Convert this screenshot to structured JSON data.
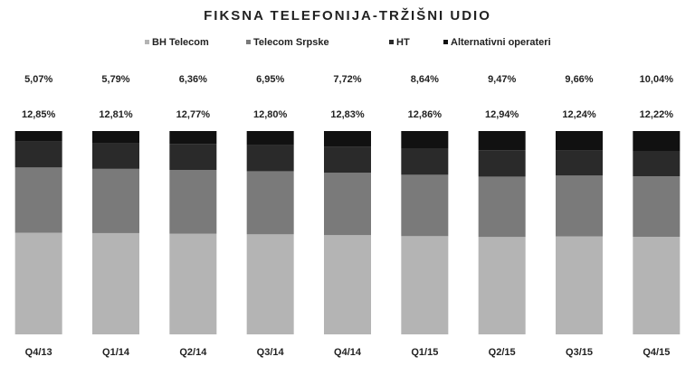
{
  "chart_data": {
    "type": "stacked_bar",
    "title": "FIKSNA TELEFONIJA-TRŽIŠNI UDIO",
    "categories": [
      "Q4/13",
      "Q1/14",
      "Q2/14",
      "Q3/14",
      "Q4/14",
      "Q1/15",
      "Q2/15",
      "Q3/15",
      "Q4/15"
    ],
    "series": [
      {
        "name": "BH Telecom",
        "color": "#b4b4b4",
        "values": [
          50,
          49.8,
          49.5,
          49.2,
          48.8,
          48.3,
          47.9,
          48.2,
          48.0
        ]
      },
      {
        "name": "Telecom Srpske",
        "color": "#7a7a7a",
        "values": [
          32.08,
          31.6,
          31.37,
          31.05,
          30.65,
          30.2,
          29.69,
          29.9,
          29.74
        ]
      },
      {
        "name": "HT",
        "color": "#2a2a2a",
        "values": [
          12.85,
          12.81,
          12.77,
          12.8,
          12.83,
          12.86,
          12.94,
          12.24,
          12.22
        ],
        "value_labels": [
          "12,85%",
          "12,81%",
          "12,77%",
          "12,80%",
          "12,83%",
          "12,86%",
          "12,94%",
          "12,24%",
          "12,22%"
        ]
      },
      {
        "name": "Alternativni operateri",
        "color": "#111111",
        "values": [
          5.07,
          5.79,
          6.36,
          6.95,
          7.72,
          8.64,
          9.47,
          9.66,
          10.04
        ],
        "value_labels": [
          "5,07%",
          "5,79%",
          "6,36%",
          "6,95%",
          "7,72%",
          "8,64%",
          "9,47%",
          "9,66%",
          "10,04%"
        ]
      }
    ],
    "legend": "top"
  }
}
